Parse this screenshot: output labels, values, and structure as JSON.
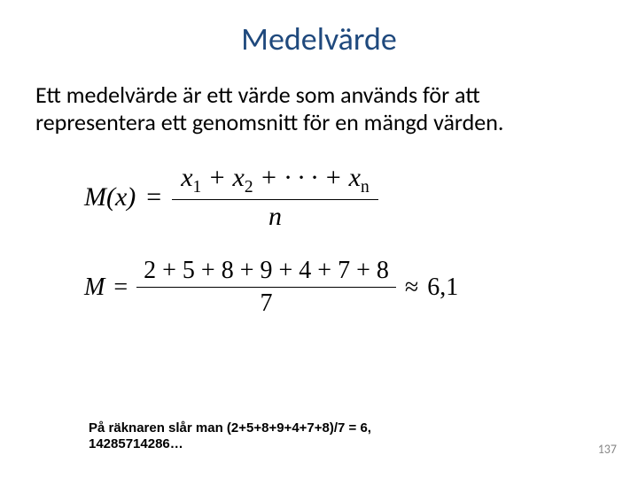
{
  "title": "Medelvärde",
  "body": "Ett medelvärde är ett värde som används för att representera ett genomsnitt för en mängd värden.",
  "formula1": {
    "lhs": "M(x)",
    "eq": "=",
    "numerator_parts": [
      "x",
      "1",
      " + ",
      "x",
      "2",
      " + · · · + ",
      "x",
      "n"
    ],
    "denominator": "n"
  },
  "formula2": {
    "lhs": "M",
    "eq": "=",
    "numerator": "2 + 5 + 8 + 9 + 4 + 7 + 8",
    "denominator": "7",
    "approx": "≈",
    "result": "6,1"
  },
  "calc_note": "På räknaren slår man (2+5+8+9+4+7+8)/7 = 6, 14285714286…",
  "page_number": "137",
  "colors": {
    "title": "#1f497d",
    "text": "#000000",
    "pagenum": "#888888",
    "bg": "#ffffff"
  }
}
